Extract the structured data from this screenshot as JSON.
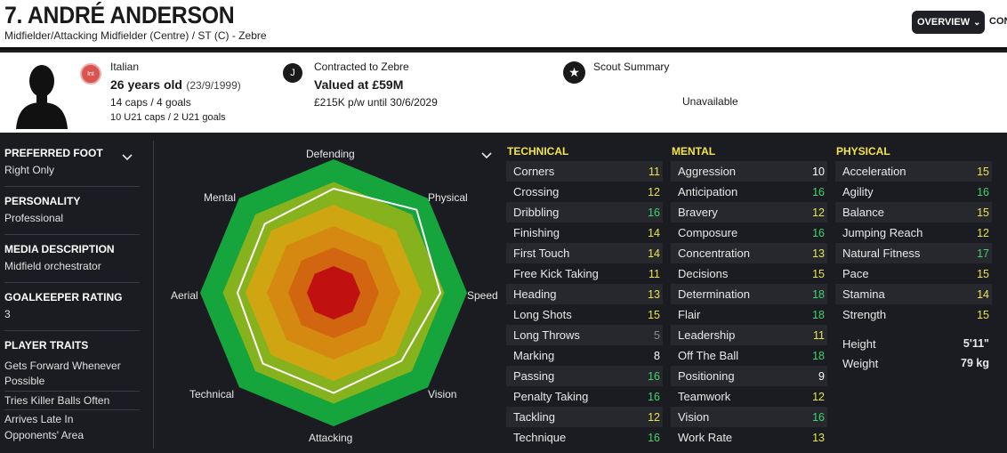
{
  "header": {
    "player_name": "7. ANDRÉ ANDERSON",
    "positions": "Midfielder/Attacking Midfielder (Centre) / ST (C) - Zebre",
    "overview_label": "OVERVIEW",
    "next_tab_label": "CON"
  },
  "info": {
    "nationality": "Italian",
    "nationality_badge": "Int",
    "age": "26 years old",
    "dob": "(23/9/1999)",
    "caps": "14 caps / 4 goals",
    "u21": "10 U21 caps / 2 U21 goals",
    "contract": "Contracted to Zebre",
    "value": "Valued at £59M",
    "wage": "£215K p/w until 30/6/2029",
    "scout_title": "Scout Summary",
    "scout_status": "Unavailable"
  },
  "left": {
    "preferred_foot_label": "PREFERRED FOOT",
    "preferred_foot": "Right Only",
    "personality_label": "PERSONALITY",
    "personality": "Professional",
    "media_label": "MEDIA DESCRIPTION",
    "media": "Midfield orchestrator",
    "gk_label": "GOALKEEPER RATING",
    "gk": "3",
    "traits_label": "PLAYER TRAITS",
    "traits": [
      "Gets Forward Whenever",
      "Possible",
      "Tries Killer Balls Often",
      "Arrives Late In",
      "Opponents' Area"
    ]
  },
  "radar": {
    "labels": [
      "Defending",
      "Physical",
      "Speed",
      "Vision",
      "Attacking",
      "Technical",
      "Aerial",
      "Mental"
    ],
    "player_profile": [
      0.78,
      0.88,
      0.8,
      0.72,
      0.75,
      0.75,
      0.72,
      0.73
    ],
    "band_colors": [
      "#16a43c",
      "#86b21e",
      "#cfa612",
      "#d58911",
      "#d2650f",
      "#c01010"
    ]
  },
  "attributes": {
    "technical": {
      "title": "TECHNICAL",
      "rows": [
        {
          "name": "Corners",
          "value": "11"
        },
        {
          "name": "Crossing",
          "value": "12"
        },
        {
          "name": "Dribbling",
          "value": "16"
        },
        {
          "name": "Finishing",
          "value": "14"
        },
        {
          "name": "First Touch",
          "value": "14"
        },
        {
          "name": "Free Kick Taking",
          "value": "11"
        },
        {
          "name": "Heading",
          "value": "13"
        },
        {
          "name": "Long Shots",
          "value": "15"
        },
        {
          "name": "Long Throws",
          "value": "5"
        },
        {
          "name": "Marking",
          "value": "8"
        },
        {
          "name": "Passing",
          "value": "16"
        },
        {
          "name": "Penalty Taking",
          "value": "16"
        },
        {
          "name": "Tackling",
          "value": "12"
        },
        {
          "name": "Technique",
          "value": "16"
        }
      ]
    },
    "mental": {
      "title": "MENTAL",
      "rows": [
        {
          "name": "Aggression",
          "value": "10"
        },
        {
          "name": "Anticipation",
          "value": "16"
        },
        {
          "name": "Bravery",
          "value": "12"
        },
        {
          "name": "Composure",
          "value": "16"
        },
        {
          "name": "Concentration",
          "value": "13"
        },
        {
          "name": "Decisions",
          "value": "15"
        },
        {
          "name": "Determination",
          "value": "18"
        },
        {
          "name": "Flair",
          "value": "18"
        },
        {
          "name": "Leadership",
          "value": "11"
        },
        {
          "name": "Off The Ball",
          "value": "18"
        },
        {
          "name": "Positioning",
          "value": "9"
        },
        {
          "name": "Teamwork",
          "value": "12"
        },
        {
          "name": "Vision",
          "value": "16"
        },
        {
          "name": "Work Rate",
          "value": "13"
        }
      ]
    },
    "physical": {
      "title": "PHYSICAL",
      "rows": [
        {
          "name": "Acceleration",
          "value": "15"
        },
        {
          "name": "Agility",
          "value": "16"
        },
        {
          "name": "Balance",
          "value": "15"
        },
        {
          "name": "Jumping Reach",
          "value": "12"
        },
        {
          "name": "Natural Fitness",
          "value": "17"
        },
        {
          "name": "Pace",
          "value": "15"
        },
        {
          "name": "Stamina",
          "value": "14"
        },
        {
          "name": "Strength",
          "value": "15"
        }
      ],
      "height_label": "Height",
      "height": "5'11\"",
      "weight_label": "Weight",
      "weight": "79 kg"
    }
  },
  "colors": {
    "very_high": "#3fd36a",
    "high": "#e8e54a",
    "medium": "#ffffff",
    "low": "#8a8a8a"
  }
}
